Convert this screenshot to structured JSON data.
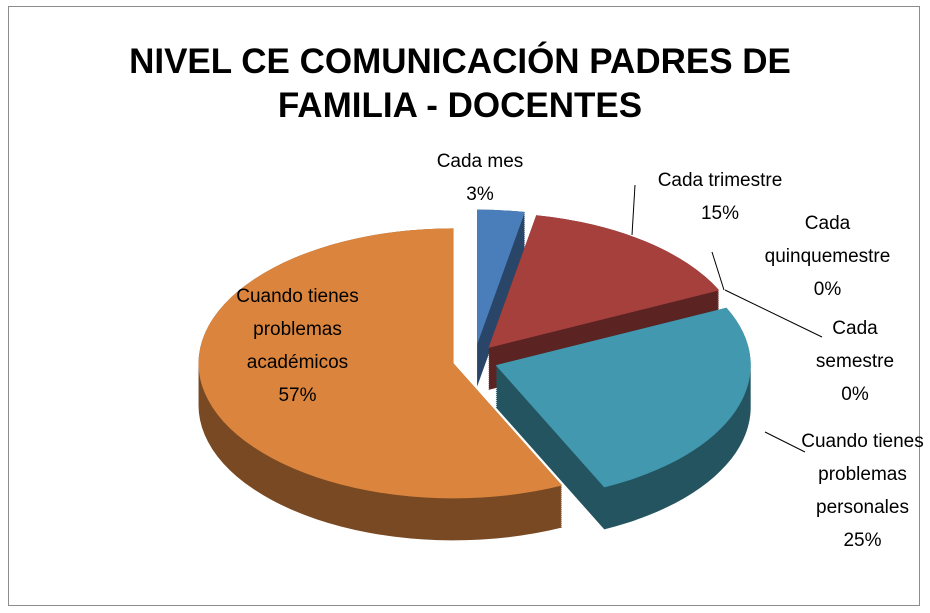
{
  "chart_data": {
    "type": "pie",
    "title": "NIVEL CE COMUNICACIÓN PADRES DE FAMILIA - DOCENTES",
    "categories": [
      "Cada mes",
      "Cada trimestre",
      "Cada quinquemestre",
      "Cada semestre",
      "Cuando tienes problemas personales",
      "Cuando tienes problemas académicos"
    ],
    "values": [
      3,
      15,
      0,
      0,
      25,
      57
    ],
    "value_labels": [
      "3%",
      "15%",
      "0%",
      "0%",
      "25%",
      "57%"
    ],
    "colors": [
      "#4a7ebb",
      "#a5403d",
      "#6a4f8a",
      "#8fb04a",
      "#4198af",
      "#db843d"
    ]
  }
}
